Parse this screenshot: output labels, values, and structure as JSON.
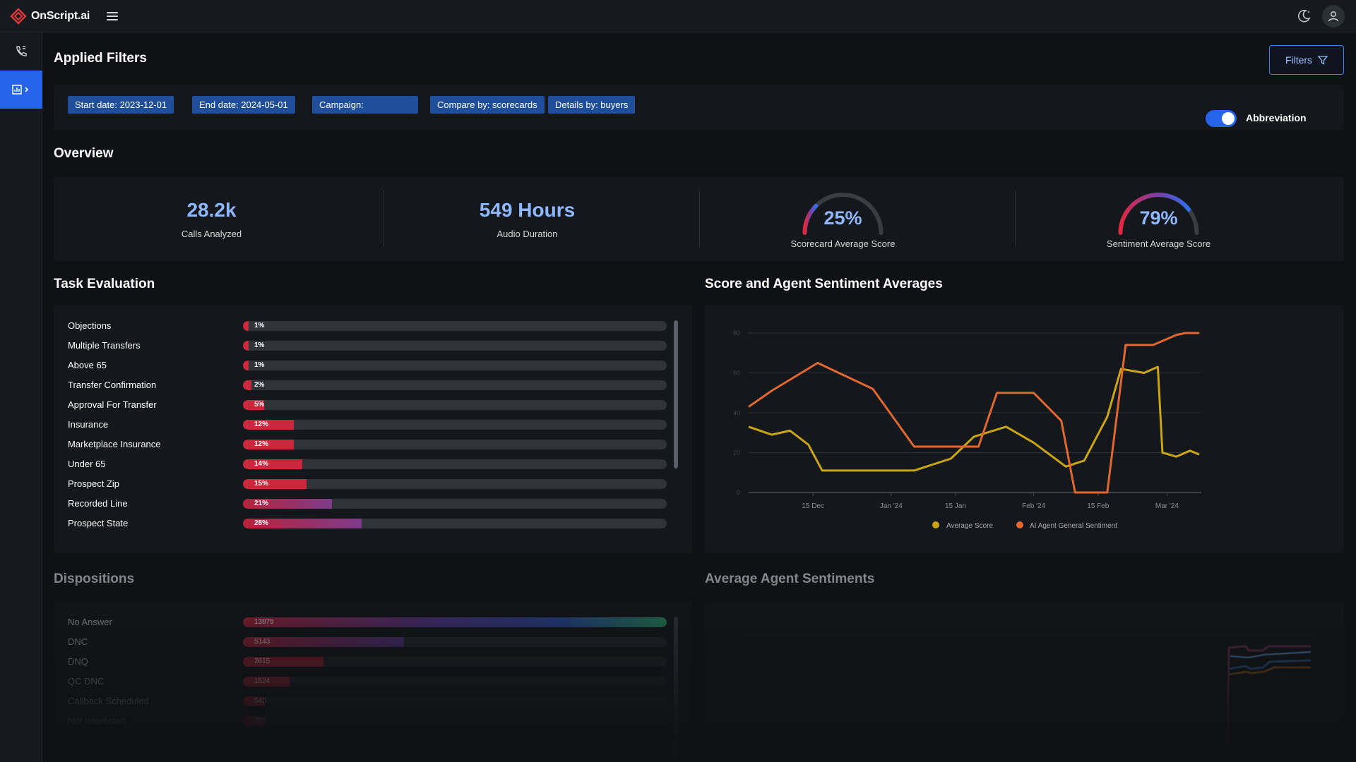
{
  "app": {
    "name": "OnScript.ai",
    "accent": "#2563eb"
  },
  "filters": {
    "title": "Applied Filters",
    "button_label": "Filters",
    "chips": [
      "Start date: 2023-12-01",
      "End date: 2024-05-01",
      "Campaign:",
      "Compare by: scorecards",
      "Details by: buyers"
    ]
  },
  "overview": {
    "title": "Overview",
    "toggle_label": "Abbreviation",
    "toggle_on": true,
    "stats": [
      {
        "value": "28.2k",
        "label": "Calls Analyzed"
      },
      {
        "value": "549 Hours",
        "label": "Audio Duration"
      }
    ],
    "gauges": [
      {
        "value": "25%",
        "percent": 25,
        "label": "Scorecard Average Score"
      },
      {
        "value": "79%",
        "percent": 79,
        "label": "Sentiment Average Score"
      }
    ]
  },
  "task_evaluation": {
    "title": "Task Evaluation",
    "items": [
      {
        "label": "Objections",
        "value": "1%",
        "percent": 1
      },
      {
        "label": "Multiple Transfers",
        "value": "1%",
        "percent": 1
      },
      {
        "label": "Above 65",
        "value": "1%",
        "percent": 1
      },
      {
        "label": "Transfer Confirmation",
        "value": "2%",
        "percent": 2
      },
      {
        "label": "Approval For Transfer",
        "value": "5%",
        "percent": 5
      },
      {
        "label": "Insurance",
        "value": "12%",
        "percent": 12
      },
      {
        "label": "Marketplace Insurance",
        "value": "12%",
        "percent": 12
      },
      {
        "label": "Under 65",
        "value": "14%",
        "percent": 14
      },
      {
        "label": "Prospect Zip",
        "value": "15%",
        "percent": 15
      },
      {
        "label": "Recorded Line",
        "value": "21%",
        "percent": 21
      },
      {
        "label": "Prospect State",
        "value": "28%",
        "percent": 28
      }
    ]
  },
  "dispositions": {
    "title": "Dispositions",
    "items": [
      {
        "label": "No Answer",
        "value": "13875",
        "percent": 100
      },
      {
        "label": "DNC",
        "value": "5143",
        "percent": 38
      },
      {
        "label": "DNQ",
        "value": "2615",
        "percent": 19
      },
      {
        "label": "QC DNC",
        "value": "1524",
        "percent": 11
      },
      {
        "label": "Callback Scheduled",
        "value": "540",
        "percent": 5
      },
      {
        "label": "Not Interested",
        "value": "363",
        "percent": 3
      }
    ]
  },
  "score_chart": {
    "title": "Score and Agent Sentiment Averages",
    "legend": [
      "Average Score",
      "AI Agent General Sentiment"
    ],
    "colors": [
      "#c9a516",
      "#e0672f"
    ]
  },
  "avg_sentiments": {
    "title": "Average Agent Sentiments"
  },
  "chart_data": [
    {
      "type": "line",
      "title": "Score and Agent Sentiment Averages",
      "x_ticks": [
        "15 Dec",
        "Jan '24",
        "15 Jan",
        "Feb '24",
        "15 Feb",
        "Mar '24"
      ],
      "x_tick_days": [
        14,
        31,
        45,
        62,
        76,
        91
      ],
      "y_ticks": [
        "0",
        "20",
        "40",
        "60",
        "80"
      ],
      "ylim": [
        0,
        80
      ],
      "xlim": [
        0,
        98
      ],
      "series": [
        {
          "name": "Average Score",
          "color": "#c9a516",
          "points": [
            [
              0,
              33
            ],
            [
              5,
              29
            ],
            [
              9,
              31
            ],
            [
              13,
              24
            ],
            [
              16,
              11
            ],
            [
              36,
              11
            ],
            [
              44,
              17
            ],
            [
              49,
              28
            ],
            [
              56,
              33
            ],
            [
              62,
              25
            ],
            [
              69,
              13
            ],
            [
              73,
              16
            ],
            [
              78,
              38
            ],
            [
              81,
              62
            ],
            [
              86,
              60
            ],
            [
              89,
              63
            ],
            [
              90,
              20
            ],
            [
              93,
              18
            ],
            [
              96,
              21
            ],
            [
              98,
              19
            ]
          ]
        },
        {
          "name": "AI Agent General Sentiment",
          "color": "#e0672f",
          "points": [
            [
              0,
              43
            ],
            [
              5,
              51
            ],
            [
              15,
              65
            ],
            [
              27,
              52
            ],
            [
              36,
              23
            ],
            [
              50,
              23
            ],
            [
              54,
              50
            ],
            [
              62,
              50
            ],
            [
              68,
              36
            ],
            [
              71,
              0
            ],
            [
              78,
              0
            ],
            [
              82,
              74
            ],
            [
              88,
              74
            ],
            [
              90,
              76
            ],
            [
              93,
              79
            ],
            [
              95,
              80
            ],
            [
              98,
              80
            ]
          ]
        }
      ]
    }
  ]
}
